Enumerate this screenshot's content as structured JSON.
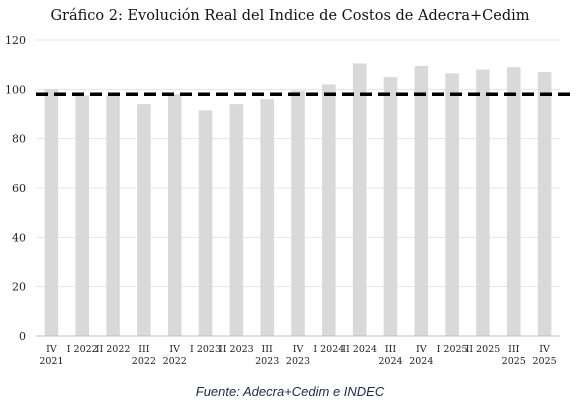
{
  "chart_data": {
    "type": "bar",
    "title": "Gráfico 2: Evolución Real del Indice de Costos de Adecra+Cedim",
    "source": "Fuente: Adecra+Cedim e INDEC",
    "categories": [
      [
        "IV",
        "2021"
      ],
      [
        "I 2022"
      ],
      [
        "II 2022"
      ],
      [
        "III",
        "2022"
      ],
      [
        "IV",
        "2022"
      ],
      [
        "I 2023"
      ],
      [
        "II 2023"
      ],
      [
        "III",
        "2023"
      ],
      [
        "IV",
        "2023"
      ],
      [
        "I 2024"
      ],
      [
        "II 2024"
      ],
      [
        "III",
        "2024"
      ],
      [
        "IV",
        "2024"
      ],
      [
        "I 2025"
      ],
      [
        "II 2025"
      ],
      [
        "III",
        "2025"
      ],
      [
        "IV",
        "2025"
      ]
    ],
    "values": [
      100,
      97.5,
      97.5,
      94,
      98,
      91.5,
      94,
      96,
      99.5,
      102,
      110.5,
      105,
      109.5,
      106.5,
      108,
      109,
      107
    ],
    "reference_line": 98,
    "ylim": [
      0,
      120
    ],
    "yticks": [
      0,
      20,
      40,
      60,
      80,
      100,
      120
    ],
    "grid": true,
    "colors": {
      "bar": "#d9d9d9",
      "grid": "#e4e4e4",
      "reference": "#000000",
      "axis": "#bfbfbf"
    }
  }
}
